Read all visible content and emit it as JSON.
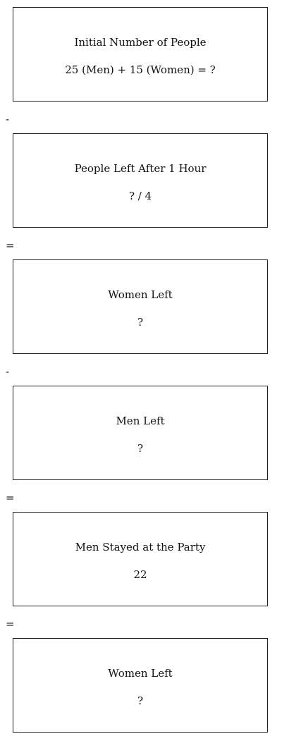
{
  "steps": [
    {
      "title": "Initial Number of People",
      "value": "25 (Men) + 15 (Women) = ?"
    },
    {
      "title": "People Left After 1 Hour",
      "value": "? / 4"
    },
    {
      "title": "Women Left",
      "value": "?"
    },
    {
      "title": "Men Left",
      "value": "?"
    },
    {
      "title": "Men Stayed at the Party",
      "value": "22"
    },
    {
      "title": "Women Left",
      "value": "?"
    }
  ],
  "operators": [
    "-",
    "=",
    "-",
    "=",
    "="
  ]
}
